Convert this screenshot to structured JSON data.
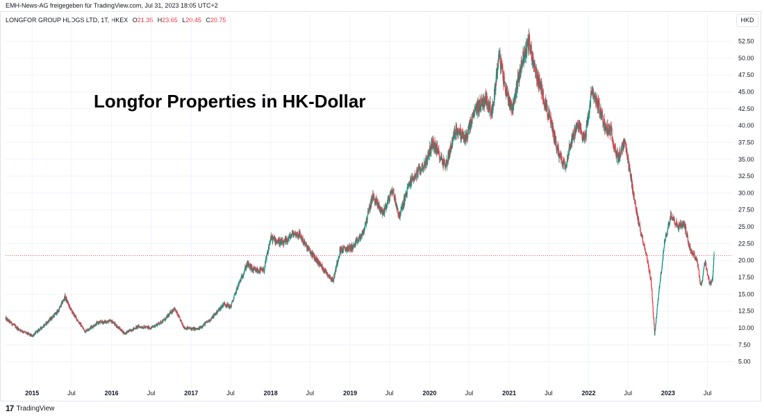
{
  "header_note": "EMH-News-AG freigegeben für TradingView.com, Jul 31, 2023 18:05 UTC+2",
  "legend": {
    "symbol": "LONGFOR GROUP HLDGS LTD, 1T, HKEX",
    "o_label": "O",
    "o_value": "21.35",
    "h_label": "H",
    "h_value": "23.65",
    "l_label": "L",
    "l_value": "20.45",
    "c_label": "C",
    "c_value": "20.75"
  },
  "currency_button": "HKD",
  "footer_brand": "TradingView",
  "footer_logo": "17",
  "colors": {
    "up": "#089981",
    "down": "#f23645",
    "grid": "#f0f3fa",
    "price_line": "#f23645"
  },
  "chart_data": {
    "type": "candlestick",
    "title": "Longfor Properties in HK-Dollar",
    "y_unit": "HKD",
    "ylim": [
      2.5,
      54.5
    ],
    "y_ticks": [
      "5.00",
      "7.50",
      "10.00",
      "12.50",
      "15.00",
      "17.50",
      "20.00",
      "22.50",
      "25.00",
      "27.50",
      "30.00",
      "32.50",
      "35.00",
      "37.50",
      "40.00",
      "42.50",
      "45.00",
      "47.50",
      "50.00",
      "52.50"
    ],
    "x_range": [
      "2014-09-01",
      "2023-10-25"
    ],
    "x_ticks": [
      {
        "label": "2015",
        "date": "2015-01-01",
        "bold": true
      },
      {
        "label": "Jul",
        "date": "2015-07-01",
        "bold": false
      },
      {
        "label": "2016",
        "date": "2016-01-01",
        "bold": true
      },
      {
        "label": "Jul",
        "date": "2016-07-01",
        "bold": false
      },
      {
        "label": "2017",
        "date": "2017-01-01",
        "bold": true
      },
      {
        "label": "Jul",
        "date": "2017-07-01",
        "bold": false
      },
      {
        "label": "2018",
        "date": "2018-01-01",
        "bold": true
      },
      {
        "label": "Jul",
        "date": "2018-07-01",
        "bold": false
      },
      {
        "label": "2019",
        "date": "2019-01-01",
        "bold": true
      },
      {
        "label": "Jul",
        "date": "2019-07-01",
        "bold": false
      },
      {
        "label": "2020",
        "date": "2020-01-01",
        "bold": true
      },
      {
        "label": "Jul",
        "date": "2020-07-01",
        "bold": false
      },
      {
        "label": "2021",
        "date": "2021-01-01",
        "bold": true
      },
      {
        "label": "Jul",
        "date": "2021-07-01",
        "bold": false
      },
      {
        "label": "2022",
        "date": "2022-01-01",
        "bold": true
      },
      {
        "label": "Jul",
        "date": "2022-07-01",
        "bold": false
      },
      {
        "label": "2023",
        "date": "2023-01-01",
        "bold": true
      },
      {
        "label": "Jul",
        "date": "2023-07-01",
        "bold": false
      }
    ],
    "last_price": 20.75,
    "close_path": [
      [
        "2014-09-01",
        11.4
      ],
      [
        "2014-11-01",
        9.8
      ],
      [
        "2015-01-01",
        8.8
      ],
      [
        "2015-03-01",
        10.5
      ],
      [
        "2015-05-01",
        12.5
      ],
      [
        "2015-06-01",
        14.6
      ],
      [
        "2015-07-01",
        12.5
      ],
      [
        "2015-09-01",
        9.5
      ],
      [
        "2015-11-01",
        10.8
      ],
      [
        "2016-01-01",
        11.0
      ],
      [
        "2016-03-01",
        9.2
      ],
      [
        "2016-05-01",
        10.2
      ],
      [
        "2016-07-01",
        10.0
      ],
      [
        "2016-09-01",
        11.2
      ],
      [
        "2016-10-15",
        12.9
      ],
      [
        "2016-12-01",
        10.0
      ],
      [
        "2017-02-01",
        9.8
      ],
      [
        "2017-04-01",
        11.3
      ],
      [
        "2017-06-01",
        13.6
      ],
      [
        "2017-07-01",
        13.1
      ],
      [
        "2017-08-01",
        16.0
      ],
      [
        "2017-09-15",
        19.5
      ],
      [
        "2017-10-15",
        18.5
      ],
      [
        "2017-12-01",
        18.5
      ],
      [
        "2018-01-01",
        23.3
      ],
      [
        "2018-03-01",
        22.5
      ],
      [
        "2018-04-15",
        24.0
      ],
      [
        "2018-05-15",
        23.8
      ],
      [
        "2018-06-15",
        22.0
      ],
      [
        "2018-08-01",
        20.0
      ],
      [
        "2018-10-15",
        17.0
      ],
      [
        "2018-11-15",
        21.5
      ],
      [
        "2019-01-15",
        22.0
      ],
      [
        "2019-03-01",
        24.0
      ],
      [
        "2019-04-15",
        29.5
      ],
      [
        "2019-06-01",
        27.0
      ],
      [
        "2019-07-15",
        30.5
      ],
      [
        "2019-08-15",
        26.5
      ],
      [
        "2019-10-01",
        31.5
      ],
      [
        "2019-12-15",
        34.5
      ],
      [
        "2020-01-15",
        37.5
      ],
      [
        "2020-03-15",
        34.0
      ],
      [
        "2020-05-01",
        39.5
      ],
      [
        "2020-06-15",
        38.0
      ],
      [
        "2020-08-01",
        42.5
      ],
      [
        "2020-09-15",
        44.0
      ],
      [
        "2020-10-15",
        42.0
      ],
      [
        "2020-11-15",
        50.5
      ],
      [
        "2020-12-15",
        45.5
      ],
      [
        "2021-01-15",
        42.5
      ],
      [
        "2021-03-01",
        49.5
      ],
      [
        "2021-04-01",
        52.5
      ],
      [
        "2021-05-01",
        48.0
      ],
      [
        "2021-06-01",
        45.0
      ],
      [
        "2021-07-15",
        40.0
      ],
      [
        "2021-08-15",
        36.0
      ],
      [
        "2021-09-15",
        34.0
      ],
      [
        "2021-10-15",
        38.0
      ],
      [
        "2021-11-15",
        40.0
      ],
      [
        "2021-12-15",
        38.0
      ],
      [
        "2022-01-15",
        45.0
      ],
      [
        "2022-02-15",
        43.0
      ],
      [
        "2022-03-15",
        40.0
      ],
      [
        "2022-04-15",
        39.0
      ],
      [
        "2022-05-15",
        35.0
      ],
      [
        "2022-06-15",
        37.5
      ],
      [
        "2022-07-15",
        32.0
      ],
      [
        "2022-08-15",
        26.0
      ],
      [
        "2022-09-15",
        22.0
      ],
      [
        "2022-10-15",
        17.0
      ],
      [
        "2022-10-31",
        9.0
      ],
      [
        "2022-11-15",
        14.0
      ],
      [
        "2022-12-15",
        22.5
      ],
      [
        "2023-01-15",
        27.0
      ],
      [
        "2023-02-15",
        25.0
      ],
      [
        "2023-03-15",
        25.5
      ],
      [
        "2023-04-15",
        21.5
      ],
      [
        "2023-05-15",
        20.0
      ],
      [
        "2023-06-01",
        16.0
      ],
      [
        "2023-06-20",
        20.0
      ],
      [
        "2023-07-10",
        16.5
      ],
      [
        "2023-07-24",
        17.0
      ],
      [
        "2023-07-31",
        20.75
      ]
    ]
  }
}
